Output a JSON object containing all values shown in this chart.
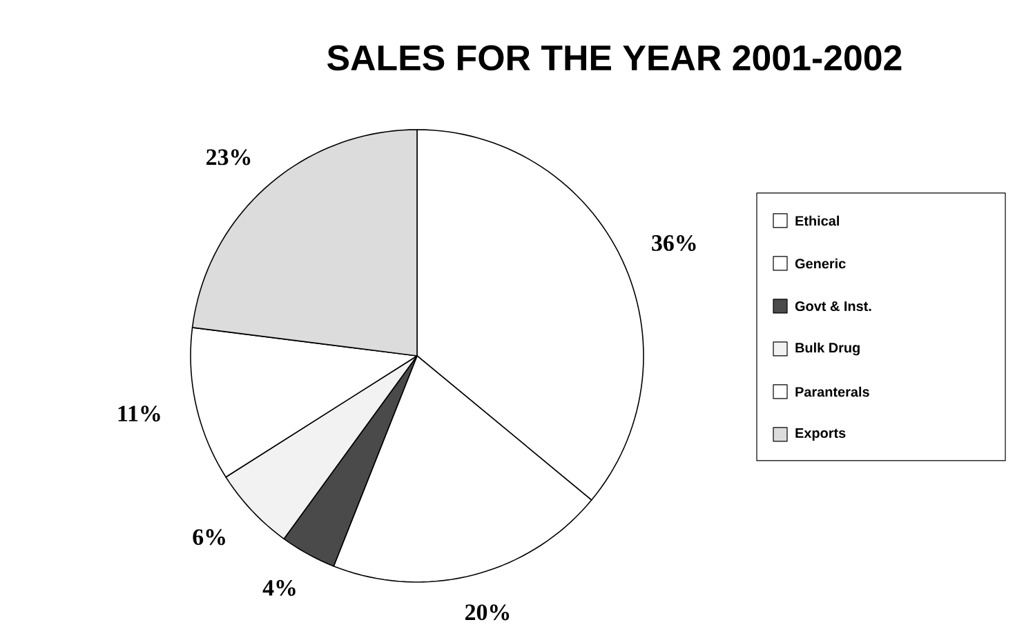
{
  "chart_data": {
    "type": "pie",
    "title": "SALES FOR THE YEAR 2001-2002",
    "categories": [
      "Ethical",
      "Generic",
      "Govt & Inst.",
      "Bulk Drug",
      "Paranterals",
      "Exports"
    ],
    "values": [
      36,
      20,
      4,
      6,
      11,
      23
    ],
    "value_labels": [
      "36%",
      "20%",
      "4%",
      "6%",
      "11%",
      "23%"
    ],
    "colors": [
      "#ffffff",
      "#ffffff",
      "#4a4a4a",
      "#f2f2f2",
      "#ffffff",
      "#dcdcdc"
    ],
    "legend": "right"
  }
}
